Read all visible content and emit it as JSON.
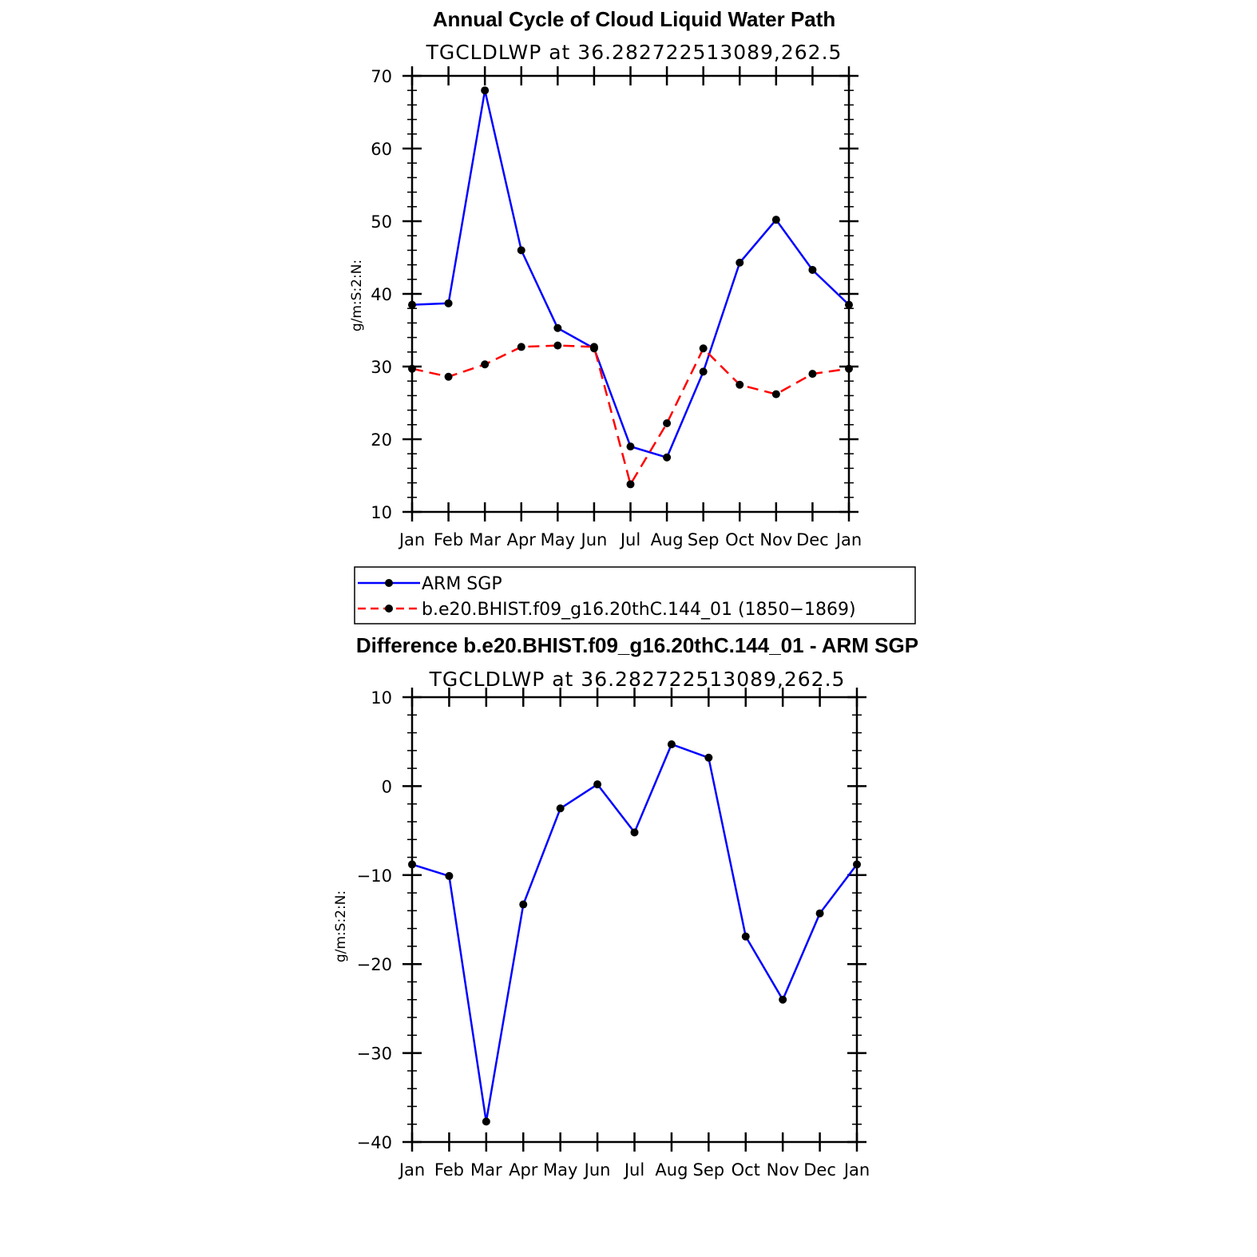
{
  "chart_data": [
    {
      "type": "line",
      "title": "Annual Cycle of Cloud Liquid Water Path",
      "subtitle": "TGCLDLWP at 36.282722513089,262.5",
      "xlabel": "",
      "ylabel": "g/m:S:2:N:",
      "ylim": [
        10,
        70
      ],
      "yticks": [
        10,
        20,
        30,
        40,
        50,
        60,
        70
      ],
      "categories": [
        "Jan",
        "Feb",
        "Mar",
        "Apr",
        "May",
        "Jun",
        "Jul",
        "Aug",
        "Sep",
        "Oct",
        "Nov",
        "Dec",
        "Jan"
      ],
      "series": [
        {
          "name": "ARM SGP",
          "color": "#0000ff",
          "style": "solid",
          "values": [
            38.5,
            38.7,
            68.0,
            46.0,
            35.3,
            32.5,
            19.0,
            17.5,
            29.3,
            44.3,
            50.2,
            43.3,
            38.5
          ]
        },
        {
          "name": "b.e20.BHIST.f09_g16.20thC.144_01 (1850−1869)",
          "color": "#ff0000",
          "style": "dashed",
          "values": [
            29.7,
            28.6,
            30.3,
            32.7,
            32.9,
            32.7,
            13.8,
            22.2,
            32.5,
            27.5,
            26.2,
            29.0,
            29.7
          ]
        }
      ],
      "legend": "below"
    },
    {
      "type": "line",
      "title": "Difference b.e20.BHIST.f09_g16.20thC.144_01 - ARM SGP",
      "subtitle": "TGCLDLWP at 36.282722513089,262.5",
      "xlabel": "",
      "ylabel": "g/m:S:2:N:",
      "ylim": [
        -40,
        10
      ],
      "yticks": [
        -40,
        -30,
        -20,
        -10,
        0,
        10
      ],
      "ytick_labels": [
        "−40",
        "−30",
        "−20",
        "−10",
        "0",
        "10"
      ],
      "categories": [
        "Jan",
        "Feb",
        "Mar",
        "Apr",
        "May",
        "Jun",
        "Jul",
        "Aug",
        "Sep",
        "Oct",
        "Nov",
        "Dec",
        "Jan"
      ],
      "series": [
        {
          "name": "Difference",
          "color": "#0000ff",
          "style": "solid",
          "values": [
            -8.8,
            -10.1,
            -37.7,
            -13.3,
            -2.5,
            0.2,
            -5.2,
            4.7,
            3.2,
            -16.9,
            -24.0,
            -14.3,
            -8.8
          ]
        }
      ]
    }
  ]
}
